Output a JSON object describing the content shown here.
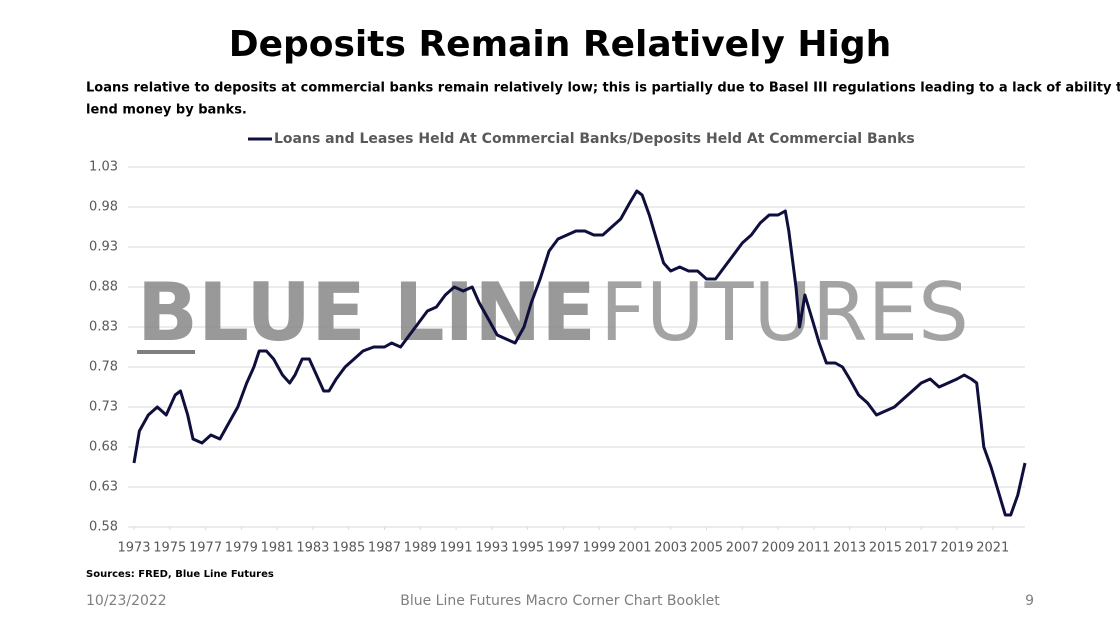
{
  "chart_data": {
    "type": "line",
    "title": "Deposits Remain Relatively High",
    "subtitle": [
      "Loans relative to deposits at commercial banks remain relatively low; this is partially due to Basel III regulations leading to a lack of ability to",
      "lend money by banks."
    ],
    "watermark": [
      "BLUE LINE",
      "FUTURES"
    ],
    "source": "Sources: FRED, Blue Line Futures",
    "footer": {
      "date": "10/23/2022",
      "center": "Blue Line Futures Macro Corner Chart Booklet",
      "page": "9"
    },
    "xlim": [
      1973,
      2022.8
    ],
    "xticks": [
      1973,
      1975,
      1977,
      1979,
      1981,
      1983,
      1985,
      1987,
      1989,
      1991,
      1993,
      1995,
      1997,
      1999,
      2001,
      2003,
      2005,
      2007,
      2009,
      2011,
      2013,
      2015,
      2017,
      2019,
      2021
    ],
    "ylim": [
      0.58,
      1.03
    ],
    "yticks": [
      0.58,
      0.63,
      0.68,
      0.73,
      0.78,
      0.83,
      0.88,
      0.93,
      0.98,
      1.03
    ],
    "grid": true,
    "legend": "top",
    "x": [
      1973.0,
      1973.3,
      1973.8,
      1974.3,
      1974.8,
      1975.3,
      1975.6,
      1976.0,
      1976.3,
      1976.8,
      1977.3,
      1977.8,
      1978.3,
      1978.8,
      1979.3,
      1979.7,
      1980.0,
      1980.4,
      1980.8,
      1981.3,
      1981.7,
      1982.0,
      1982.4,
      1982.8,
      1983.2,
      1983.6,
      1983.9,
      1984.3,
      1984.8,
      1985.3,
      1985.8,
      1986.4,
      1987.0,
      1987.4,
      1987.9,
      1988.4,
      1988.9,
      1989.4,
      1989.9,
      1990.4,
      1990.9,
      1991.4,
      1991.9,
      1992.3,
      1992.8,
      1993.3,
      1993.8,
      1994.3,
      1994.8,
      1995.2,
      1995.7,
      1996.2,
      1996.7,
      1997.2,
      1997.7,
      1998.2,
      1998.7,
      1999.2,
      1999.7,
      2000.2,
      2000.7,
      2001.1,
      2001.4,
      2001.8,
      2002.2,
      2002.6,
      2003.0,
      2003.5,
      2004.0,
      2004.5,
      2005.0,
      2005.5,
      2006.0,
      2006.5,
      2007.0,
      2007.5,
      2008.0,
      2008.5,
      2009.0,
      2009.4,
      2009.6,
      2010.0,
      2010.2,
      2010.5,
      2010.9,
      2011.3,
      2011.7,
      2012.2,
      2012.6,
      2013.0,
      2013.5,
      2014.0,
      2014.5,
      2015.0,
      2015.5,
      2016.0,
      2016.5,
      2017.0,
      2017.5,
      2018.0,
      2018.5,
      2019.0,
      2019.4,
      2019.8,
      2020.1,
      2020.3,
      2020.5,
      2020.9,
      2021.3,
      2021.7,
      2022.0,
      2022.4,
      2022.7,
      2022.8
    ],
    "series": [
      {
        "name": "Loans and Leases Held At Commercial Banks/Deposits Held At Commercial Banks",
        "color": "#0f0f3d",
        "values": [
          0.66,
          0.7,
          0.72,
          0.73,
          0.72,
          0.745,
          0.75,
          0.72,
          0.69,
          0.685,
          0.695,
          0.69,
          0.71,
          0.73,
          0.76,
          0.78,
          0.8,
          0.8,
          0.79,
          0.77,
          0.76,
          0.77,
          0.79,
          0.79,
          0.77,
          0.75,
          0.75,
          0.765,
          0.78,
          0.79,
          0.8,
          0.805,
          0.805,
          0.81,
          0.805,
          0.82,
          0.835,
          0.85,
          0.855,
          0.87,
          0.88,
          0.875,
          0.88,
          0.86,
          0.84,
          0.82,
          0.815,
          0.81,
          0.83,
          0.86,
          0.89,
          0.925,
          0.94,
          0.945,
          0.95,
          0.95,
          0.945,
          0.945,
          0.955,
          0.965,
          0.985,
          1.0,
          0.995,
          0.97,
          0.94,
          0.91,
          0.9,
          0.905,
          0.9,
          0.9,
          0.89,
          0.89,
          0.905,
          0.92,
          0.935,
          0.945,
          0.96,
          0.97,
          0.97,
          0.975,
          0.95,
          0.88,
          0.83,
          0.87,
          0.84,
          0.81,
          0.785,
          0.785,
          0.78,
          0.765,
          0.745,
          0.735,
          0.72,
          0.725,
          0.73,
          0.74,
          0.75,
          0.76,
          0.765,
          0.755,
          0.76,
          0.765,
          0.77,
          0.765,
          0.76,
          0.72,
          0.68,
          0.655,
          0.625,
          0.595,
          0.595,
          0.62,
          0.65,
          0.66
        ]
      }
    ]
  }
}
